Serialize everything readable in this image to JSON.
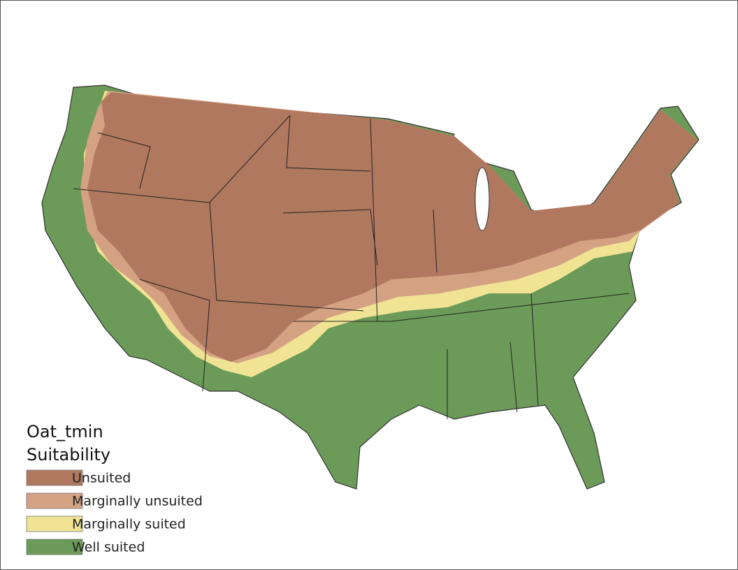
{
  "legend": {
    "title": "Oat_tmin",
    "subtitle": "Suitability",
    "items": [
      {
        "label": "Unsuited",
        "color": "#b0785f"
      },
      {
        "label": "Marginally unsuited",
        "color": "#d4a283"
      },
      {
        "label": "Marginally suited",
        "color": "#f0e394"
      },
      {
        "label": "Well suited",
        "color": "#6c9a58"
      }
    ]
  }
}
